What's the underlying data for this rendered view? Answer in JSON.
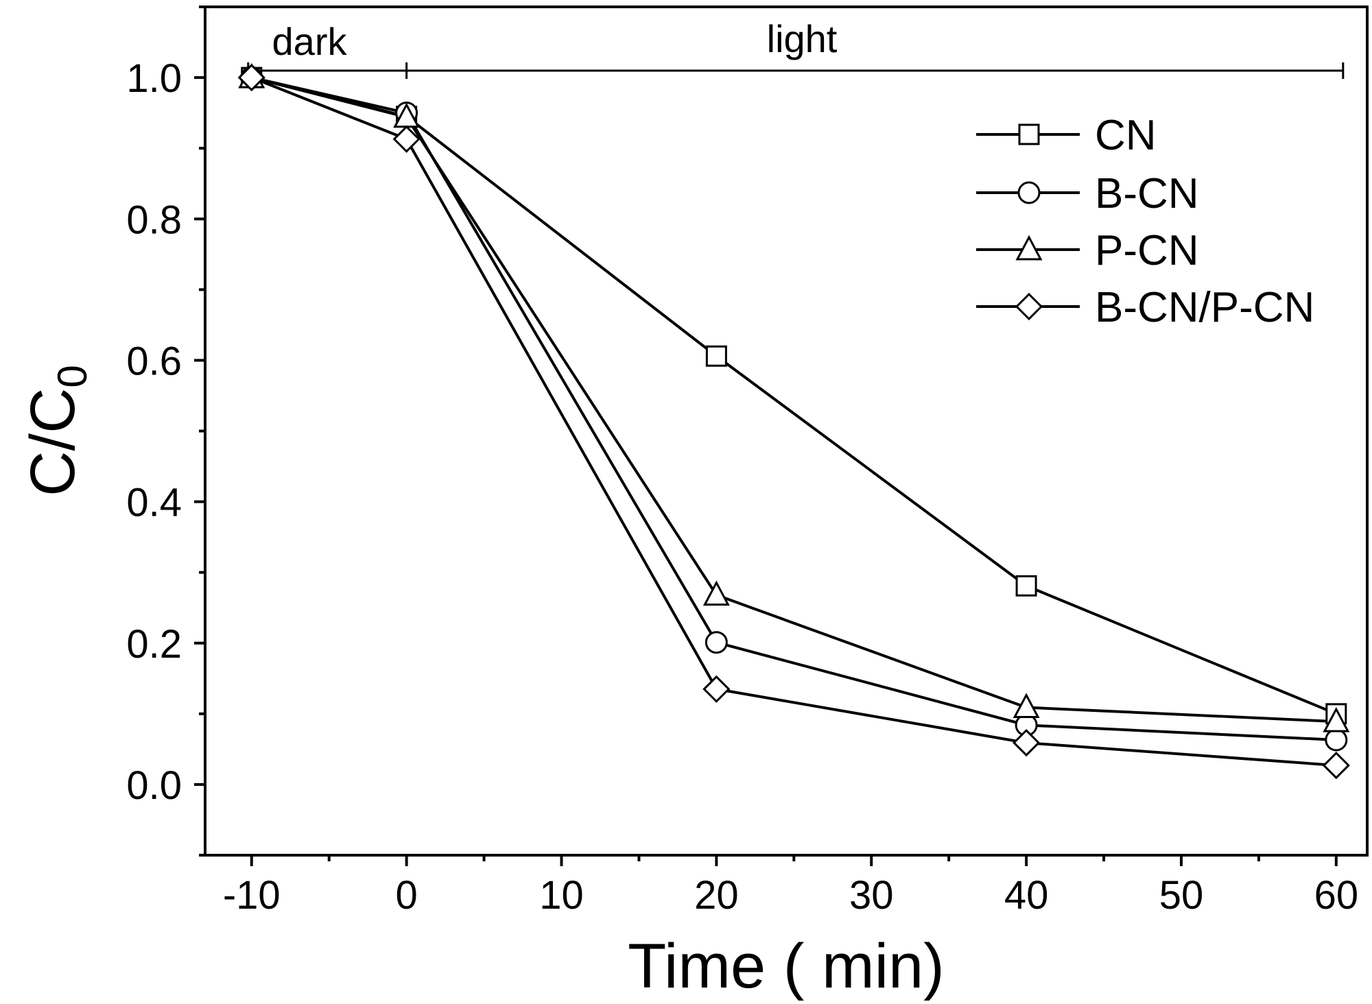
{
  "chart_data": {
    "type": "line",
    "xlabel": "Time ( min)",
    "ylabel": "C/C",
    "ylabel_subscript": "0",
    "xlim": [
      -13,
      62
    ],
    "ylim": [
      -0.1,
      1.1
    ],
    "xticks": [
      -10,
      0,
      10,
      20,
      30,
      40,
      50,
      60
    ],
    "xtick_labels": [
      "-10",
      "0",
      "10",
      "20",
      "30",
      "40",
      "50",
      "60"
    ],
    "yticks": [
      0.0,
      0.2,
      0.4,
      0.6,
      0.8,
      1.0
    ],
    "ytick_labels": [
      "0.0",
      "0.2",
      "0.4",
      "0.6",
      "0.8",
      "1.0"
    ],
    "grid": false,
    "legend_position": "top-right",
    "x": [
      -10,
      0,
      20,
      40,
      60
    ],
    "series": [
      {
        "name": "CN",
        "marker": "square",
        "values": [
          1.0,
          0.945,
          0.606,
          0.281,
          0.1
        ]
      },
      {
        "name": "B-CN",
        "marker": "circle",
        "values": [
          1.0,
          0.95,
          0.201,
          0.084,
          0.063
        ]
      },
      {
        "name": "P-CN",
        "marker": "triangle",
        "values": [
          1.0,
          0.944,
          0.268,
          0.109,
          0.089
        ]
      },
      {
        "name": "B-CN/P-CN",
        "marker": "diamond",
        "values": [
          1.0,
          0.913,
          0.135,
          0.059,
          0.027
        ]
      }
    ],
    "annotations": {
      "dark": {
        "label": "dark",
        "range": [
          -10,
          0
        ]
      },
      "light": {
        "label": "light",
        "range": [
          0,
          60
        ]
      }
    },
    "colors": {
      "line": "#000000",
      "marker_fill": "#ffffff"
    }
  }
}
